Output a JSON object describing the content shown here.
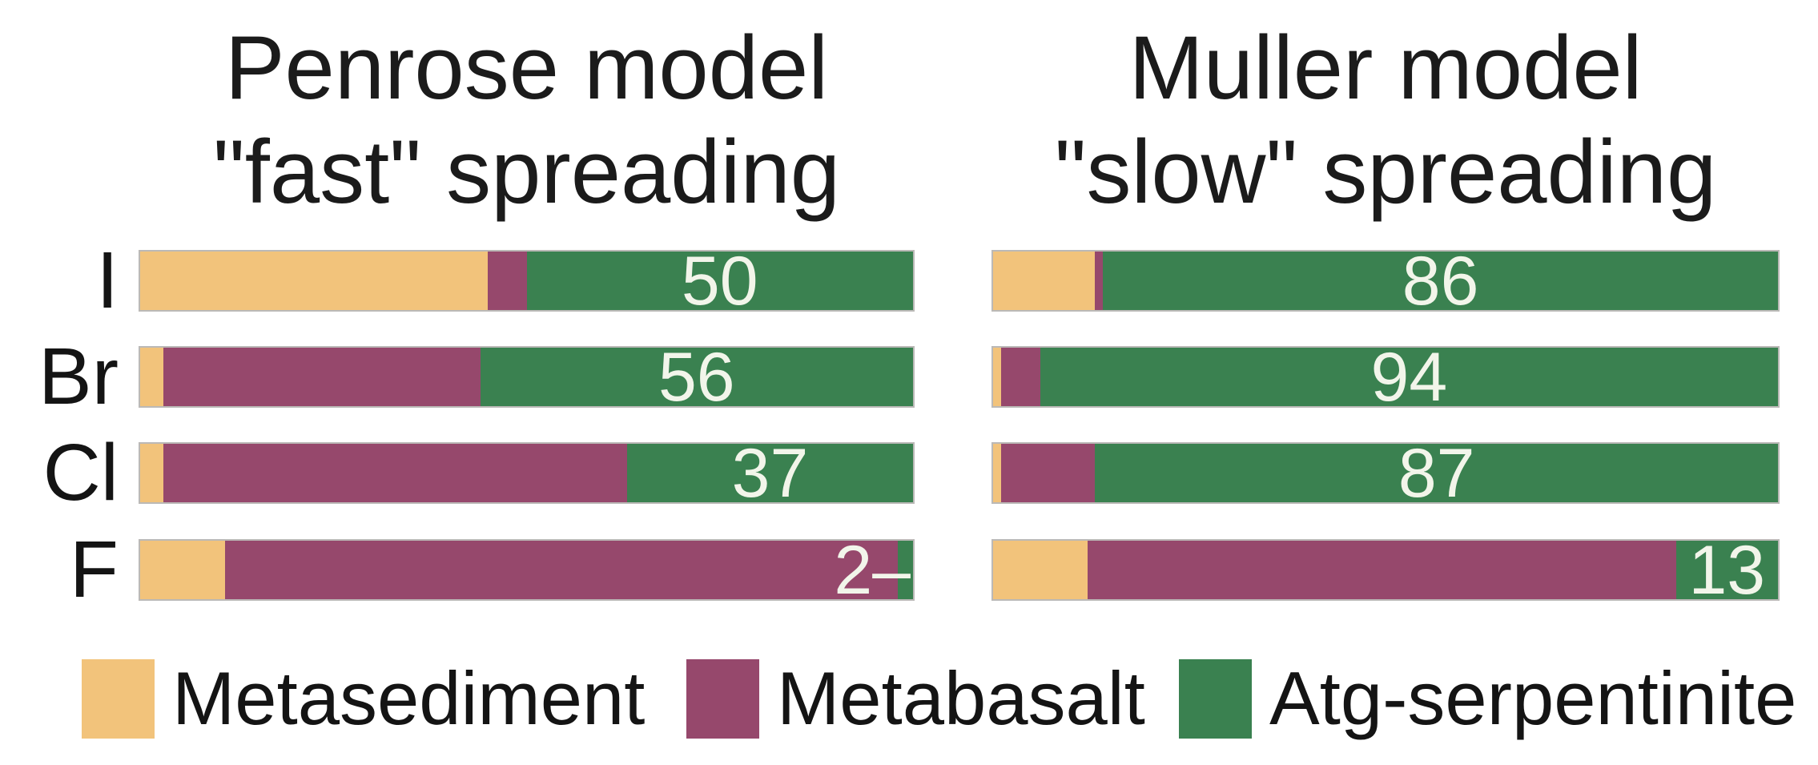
{
  "chart_data": {
    "type": "bar",
    "orientation": "horizontal-stacked",
    "unit": "percent",
    "xlim": [
      0,
      100
    ],
    "grid": false,
    "categories": [
      "I",
      "Br",
      "Cl",
      "F"
    ],
    "series_names": [
      "Metasediment",
      "Metabasalt",
      "Atg-serpentinite"
    ],
    "panels": [
      {
        "id": "penrose",
        "title_line1": "Penrose model",
        "title_line2": "\"fast\" spreading",
        "rows": [
          {
            "category": "I",
            "values": [
              45,
              5,
              50
            ],
            "label": "50",
            "label_pos": "center"
          },
          {
            "category": "Br",
            "values": [
              3,
              41,
              56
            ],
            "label": "56",
            "label_pos": "center"
          },
          {
            "category": "Cl",
            "values": [
              3,
              60,
              37
            ],
            "label": "37",
            "label_pos": "center"
          },
          {
            "category": "F",
            "values": [
              11,
              87,
              2
            ],
            "label": "2–",
            "label_pos": "edge"
          }
        ]
      },
      {
        "id": "muller",
        "title_line1": "Muller model",
        "title_line2": "\"slow\" spreading",
        "rows": [
          {
            "category": "I",
            "values": [
              13,
              1,
              86
            ],
            "label": "86",
            "label_pos": "center"
          },
          {
            "category": "Br",
            "values": [
              1,
              5,
              94
            ],
            "label": "94",
            "label_pos": "center"
          },
          {
            "category": "Cl",
            "values": [
              1,
              12,
              87
            ],
            "label": "87",
            "label_pos": "center"
          },
          {
            "category": "F",
            "values": [
              12,
              75,
              13
            ],
            "label": "13",
            "label_pos": "center"
          }
        ]
      }
    ],
    "legend": [
      {
        "label": "Metasediment",
        "color": "#f2c37b"
      },
      {
        "label": "Metabasalt",
        "color": "#96486c"
      },
      {
        "label": "Atg-serpentinite",
        "color": "#3a8150"
      }
    ],
    "value_label_color": "#f2f5ea",
    "text_color": "#141414",
    "background_color": "#ffffff"
  }
}
